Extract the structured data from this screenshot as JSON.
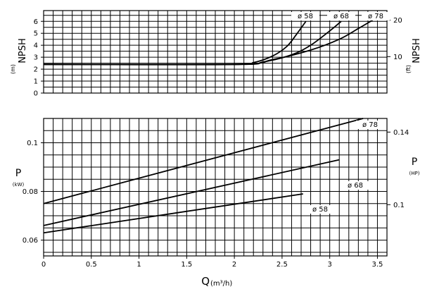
{
  "chart_data": [
    {
      "type": "line",
      "panel": "npsh",
      "ylabel": "NPSH",
      "yunit": "(m)",
      "y2label": "NPSH",
      "y2unit": "(ft)",
      "xlim": [
        0,
        3.6
      ],
      "ylim": [
        0,
        6.9
      ],
      "yticks": [
        0,
        1,
        2,
        3,
        4,
        5,
        6
      ],
      "y2ticks": [
        10,
        20
      ],
      "grid": true,
      "series": [
        {
          "name": "ø 58",
          "x": [
            0,
            2.0,
            2.2,
            2.4,
            2.55,
            2.65,
            2.75
          ],
          "y": [
            2.4,
            2.4,
            2.55,
            3.1,
            3.9,
            4.9,
            6.0
          ]
        },
        {
          "name": "ø 68",
          "x": [
            0,
            2.0,
            2.3,
            2.6,
            2.8,
            3.0,
            3.12
          ],
          "y": [
            2.4,
            2.4,
            2.6,
            3.2,
            4.0,
            5.2,
            6.0
          ]
        },
        {
          "name": "ø 78",
          "x": [
            0,
            2.0,
            2.4,
            2.8,
            3.1,
            3.3,
            3.45
          ],
          "y": [
            2.4,
            2.4,
            2.8,
            3.6,
            4.5,
            5.4,
            6.1
          ]
        }
      ]
    },
    {
      "type": "line",
      "panel": "power",
      "ylabel": "P",
      "yunit": "(kW)",
      "y2label": "P",
      "y2unit": "(HP)",
      "xlabel": "Q",
      "xunit": "(m³/h)",
      "xlim": [
        0,
        3.6
      ],
      "ylim": [
        0.0535,
        0.11
      ],
      "yticks": [
        0.06,
        0.08,
        0.1
      ],
      "y2ticks": [
        0.1,
        0.14
      ],
      "xticks": [
        0,
        0.5,
        1,
        1.5,
        2,
        2.5,
        3,
        3.5
      ],
      "grid": true,
      "series": [
        {
          "name": "ø 78",
          "x": [
            0,
            3.35
          ],
          "y": [
            0.075,
            0.11
          ]
        },
        {
          "name": "ø 68",
          "x": [
            0,
            3.1
          ],
          "y": [
            0.066,
            0.093
          ]
        },
        {
          "name": "ø 58",
          "x": [
            0,
            2.72
          ],
          "y": [
            0.063,
            0.079
          ]
        }
      ]
    }
  ]
}
